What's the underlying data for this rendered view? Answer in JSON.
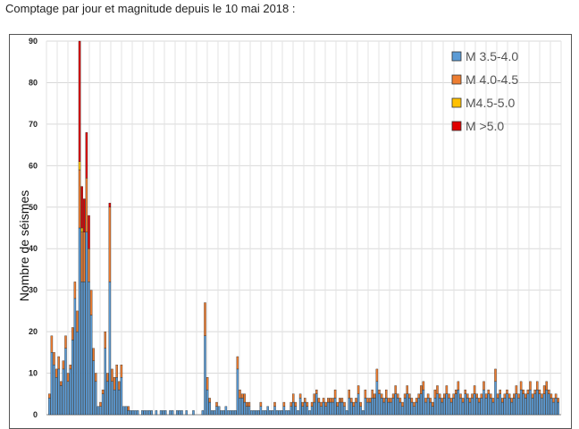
{
  "caption": "Comptage par jour et magnitude depuis le 10 mai 2018 :",
  "chart_data": {
    "type": "bar",
    "stacked": true,
    "title": "",
    "xlabel": "",
    "ylabel": "Nombre de séismes",
    "ylim": [
      0,
      90
    ],
    "yticks": [
      "0",
      "10",
      "20",
      "30",
      "40",
      "50",
      "60",
      "70",
      "80",
      "90"
    ],
    "grid": true,
    "legend_position": "top-right",
    "series": [
      {
        "name": "M 3.5-4.0",
        "color": "#5b9bd5",
        "values": [
          4,
          15,
          12,
          9,
          11,
          7,
          11,
          16,
          8,
          11,
          18,
          28,
          20,
          45,
          32,
          32,
          44,
          32,
          24,
          13,
          8,
          2,
          2,
          5,
          16,
          8,
          32,
          8,
          6,
          9,
          6,
          9,
          2,
          2,
          1,
          1,
          1,
          1,
          1,
          0,
          1,
          1,
          1,
          1,
          1,
          0,
          1,
          0,
          1,
          1,
          1,
          0,
          1,
          1,
          0,
          1,
          1,
          1,
          0,
          1,
          0,
          0,
          1,
          0,
          0,
          0,
          1,
          19,
          6,
          3,
          1,
          1,
          2,
          2,
          1,
          1,
          2,
          1,
          1,
          1,
          1,
          11,
          4,
          4,
          3,
          2,
          2,
          1,
          1,
          1,
          1,
          2,
          1,
          1,
          2,
          1,
          1,
          2,
          1,
          1,
          1,
          2,
          1,
          1,
          2,
          3,
          2,
          1,
          4,
          2,
          3,
          2,
          1,
          2,
          3,
          5,
          3,
          2,
          3,
          2,
          3,
          3,
          3,
          4,
          2,
          3,
          3,
          2,
          1,
          4,
          3,
          2,
          3,
          5,
          2,
          1,
          4,
          3,
          3,
          4,
          4,
          8,
          5,
          4,
          3,
          4,
          3,
          3,
          4,
          5,
          4,
          3,
          2,
          4,
          5,
          4,
          3,
          2,
          3,
          4,
          5,
          6,
          3,
          4,
          3,
          2,
          4,
          5,
          4,
          3,
          4,
          5,
          4,
          3,
          4,
          5,
          6,
          4,
          3,
          5,
          4,
          3,
          4,
          5,
          4,
          3,
          4,
          6,
          4,
          5,
          4,
          3,
          8,
          4,
          5,
          3,
          4,
          5,
          4,
          3,
          4,
          5,
          4,
          6,
          5,
          4,
          5,
          6,
          4,
          5,
          6,
          5,
          4,
          5,
          6,
          5,
          4,
          3,
          4,
          3
        ]
      },
      {
        "name": "M 4.0-4.5",
        "color": "#ed7d31",
        "values": [
          1,
          4,
          3,
          2,
          3,
          1,
          2,
          3,
          2,
          1,
          3,
          4,
          5,
          14,
          12,
          12,
          13,
          8,
          6,
          3,
          2,
          0,
          1,
          1,
          4,
          2,
          18,
          3,
          3,
          3,
          2,
          3,
          0,
          0,
          1,
          0,
          0,
          0,
          0,
          0,
          0,
          0,
          0,
          0,
          0,
          0,
          0,
          0,
          0,
          0,
          0,
          0,
          0,
          0,
          0,
          0,
          0,
          0,
          0,
          0,
          0,
          0,
          0,
          0,
          0,
          0,
          0,
          8,
          3,
          1,
          0,
          0,
          1,
          0,
          0,
          0,
          0,
          0,
          0,
          0,
          0,
          3,
          2,
          1,
          2,
          1,
          1,
          0,
          0,
          0,
          0,
          1,
          0,
          0,
          0,
          0,
          0,
          1,
          0,
          0,
          0,
          1,
          0,
          0,
          1,
          2,
          1,
          0,
          1,
          1,
          1,
          1,
          0,
          1,
          2,
          1,
          1,
          1,
          1,
          1,
          1,
          1,
          1,
          2,
          1,
          1,
          1,
          1,
          0,
          2,
          1,
          1,
          1,
          2,
          1,
          0,
          2,
          1,
          1,
          2,
          1,
          3,
          1,
          1,
          1,
          2,
          1,
          1,
          1,
          2,
          1,
          1,
          1,
          1,
          2,
          1,
          1,
          1,
          1,
          1,
          2,
          2,
          1,
          1,
          1,
          1,
          2,
          2,
          1,
          1,
          1,
          2,
          1,
          1,
          1,
          1,
          2,
          1,
          1,
          1,
          1,
          1,
          1,
          2,
          1,
          1,
          1,
          2,
          1,
          1,
          1,
          1,
          3,
          1,
          1,
          1,
          1,
          1,
          1,
          1,
          1,
          2,
          1,
          2,
          1,
          1,
          1,
          2,
          1,
          1,
          2,
          1,
          1,
          2,
          2,
          1,
          1,
          1,
          1,
          1
        ]
      },
      {
        "name": "M4.5-5.0",
        "color": "#ffc000",
        "values": [
          0,
          0,
          0,
          0,
          0,
          0,
          0,
          0,
          0,
          0,
          0,
          0,
          0,
          2,
          1,
          0,
          0,
          0,
          0,
          0,
          0,
          0,
          0,
          0,
          0,
          0,
          0,
          0,
          0,
          0,
          0,
          0,
          0,
          0,
          0,
          0,
          0,
          0,
          0,
          0,
          0,
          0,
          0,
          0,
          0,
          0,
          0,
          0,
          0,
          0,
          0,
          0,
          0,
          0,
          0,
          0,
          0,
          0,
          0,
          0,
          0,
          0,
          0,
          0,
          0,
          0,
          0,
          0,
          0,
          0,
          0,
          0,
          0,
          0,
          0,
          0,
          0,
          0,
          0,
          0,
          0,
          0,
          0,
          0,
          0,
          0,
          0,
          0,
          0,
          0,
          0,
          0,
          0,
          0,
          0,
          0,
          0,
          0,
          0,
          0,
          0,
          0,
          0,
          0,
          0,
          0,
          0,
          0,
          0,
          0,
          0,
          0,
          0,
          0,
          0,
          0,
          0,
          0,
          0,
          0,
          0,
          0,
          0,
          0,
          0,
          0,
          0,
          0,
          0,
          0,
          0,
          0,
          0,
          0,
          0,
          0,
          0,
          0,
          0,
          0,
          0,
          0,
          0,
          0,
          0,
          0,
          0,
          0,
          0,
          0,
          0,
          0,
          0,
          0,
          0,
          0,
          0,
          0,
          0,
          0,
          0,
          0,
          0,
          0,
          0,
          0,
          0,
          0,
          0,
          0,
          0,
          0,
          0,
          0,
          0,
          0,
          0,
          0,
          0,
          0,
          0,
          0,
          0,
          0,
          0,
          0,
          0,
          0,
          0,
          0,
          0,
          0,
          0,
          0,
          0,
          0,
          0,
          0,
          0,
          0,
          0,
          0,
          0,
          0,
          0,
          0,
          0,
          0,
          0,
          0,
          0,
          0,
          0,
          0,
          0,
          0,
          0,
          0,
          0,
          0,
          0,
          0,
          0,
          0,
          0,
          0
        ]
      },
      {
        "name": "M >5.0",
        "color": "#e00000",
        "values": [
          0,
          0,
          0,
          0,
          0,
          0,
          0,
          0,
          0,
          0,
          0,
          0,
          0,
          29,
          10,
          8,
          11,
          8,
          0,
          0,
          0,
          0,
          0,
          0,
          0,
          0,
          1,
          0,
          0,
          0,
          0,
          0,
          0,
          0,
          0,
          0,
          0,
          0,
          0,
          0,
          0,
          0,
          0,
          0,
          0,
          0,
          0,
          0,
          0,
          0,
          0,
          0,
          0,
          0,
          0,
          0,
          0,
          0,
          0,
          0,
          0,
          0,
          0,
          0,
          0,
          0,
          0,
          0,
          0,
          0,
          0,
          0,
          0,
          0,
          0,
          0,
          0,
          0,
          0,
          0,
          0,
          0,
          0,
          0,
          0,
          0,
          0,
          0,
          0,
          0,
          0,
          0,
          0,
          0,
          0,
          0,
          0,
          0,
          0,
          0,
          0,
          0,
          0,
          0,
          0,
          0,
          0,
          0,
          0,
          0,
          0,
          0,
          0,
          0,
          0,
          0,
          0,
          0,
          0,
          0,
          0,
          0,
          0,
          0,
          0,
          0,
          0,
          0,
          0,
          0,
          0,
          0,
          0,
          0,
          0,
          0,
          0,
          0,
          0,
          0,
          0,
          0,
          0,
          0,
          0,
          0,
          0,
          0,
          0,
          0,
          0,
          0,
          0,
          0,
          0,
          0,
          0,
          0,
          0,
          0,
          0,
          0,
          0,
          0,
          0,
          0,
          0,
          0,
          0,
          0,
          0,
          0,
          0,
          0,
          0,
          0,
          0,
          0,
          0,
          0,
          0,
          0,
          0,
          0,
          0,
          0,
          0,
          0,
          0,
          0,
          0,
          0,
          0,
          0,
          0,
          0,
          0,
          0,
          0,
          0,
          0,
          0,
          0,
          0,
          0,
          0,
          0,
          0,
          0,
          0,
          0,
          0,
          0,
          0,
          0,
          0,
          0,
          0,
          0,
          0,
          0,
          0,
          0,
          0,
          0,
          0
        ]
      }
    ]
  }
}
